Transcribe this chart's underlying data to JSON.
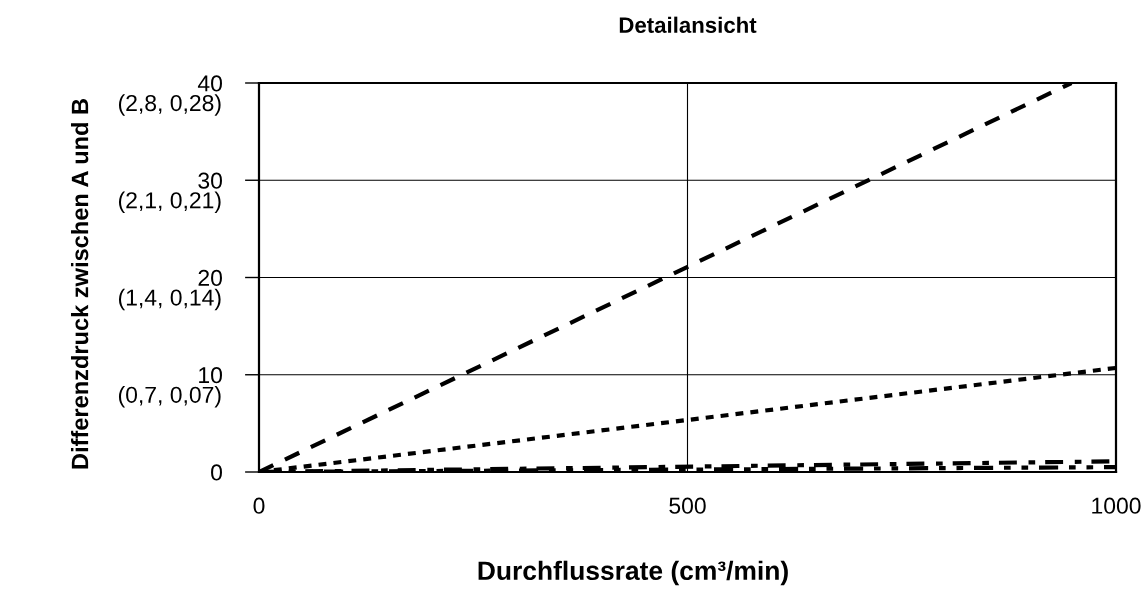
{
  "chart_data": {
    "type": "line",
    "title": "Detailansicht",
    "xlabel": "Durchflussrate (cm³/min)",
    "ylabel": "Differenzdruck zwischen A und B",
    "series": [
      {
        "color": "#000000",
        "line_style": "dashed",
        "x": [
          0,
          948
        ],
        "values": [
          0,
          40
        ]
      },
      {
        "color": "#000000",
        "line_style": "dotted",
        "x": [
          0,
          1000
        ],
        "values": [
          0,
          10.7
        ]
      },
      {
        "color": "#000000",
        "line_style": "dashdot",
        "x": [
          0,
          1000
        ],
        "values": [
          0,
          1.1
        ]
      },
      {
        "color": "#000000",
        "line_style": "dashdotdot",
        "x": [
          0,
          1000
        ],
        "values": [
          0,
          0.5
        ]
      }
    ],
    "xlim": [
      0,
      1000
    ],
    "xticks": [
      0,
      500,
      1000
    ],
    "ylim": [
      0,
      40
    ],
    "yticks": [
      0,
      10,
      20,
      30,
      40
    ],
    "annotations": [
      "(2,8, 0,28)",
      "(2,1, 0,21)",
      "(1,4, 0,14)",
      "(0,7, 0,07)"
    ],
    "grid": true,
    "marker": "none"
  }
}
